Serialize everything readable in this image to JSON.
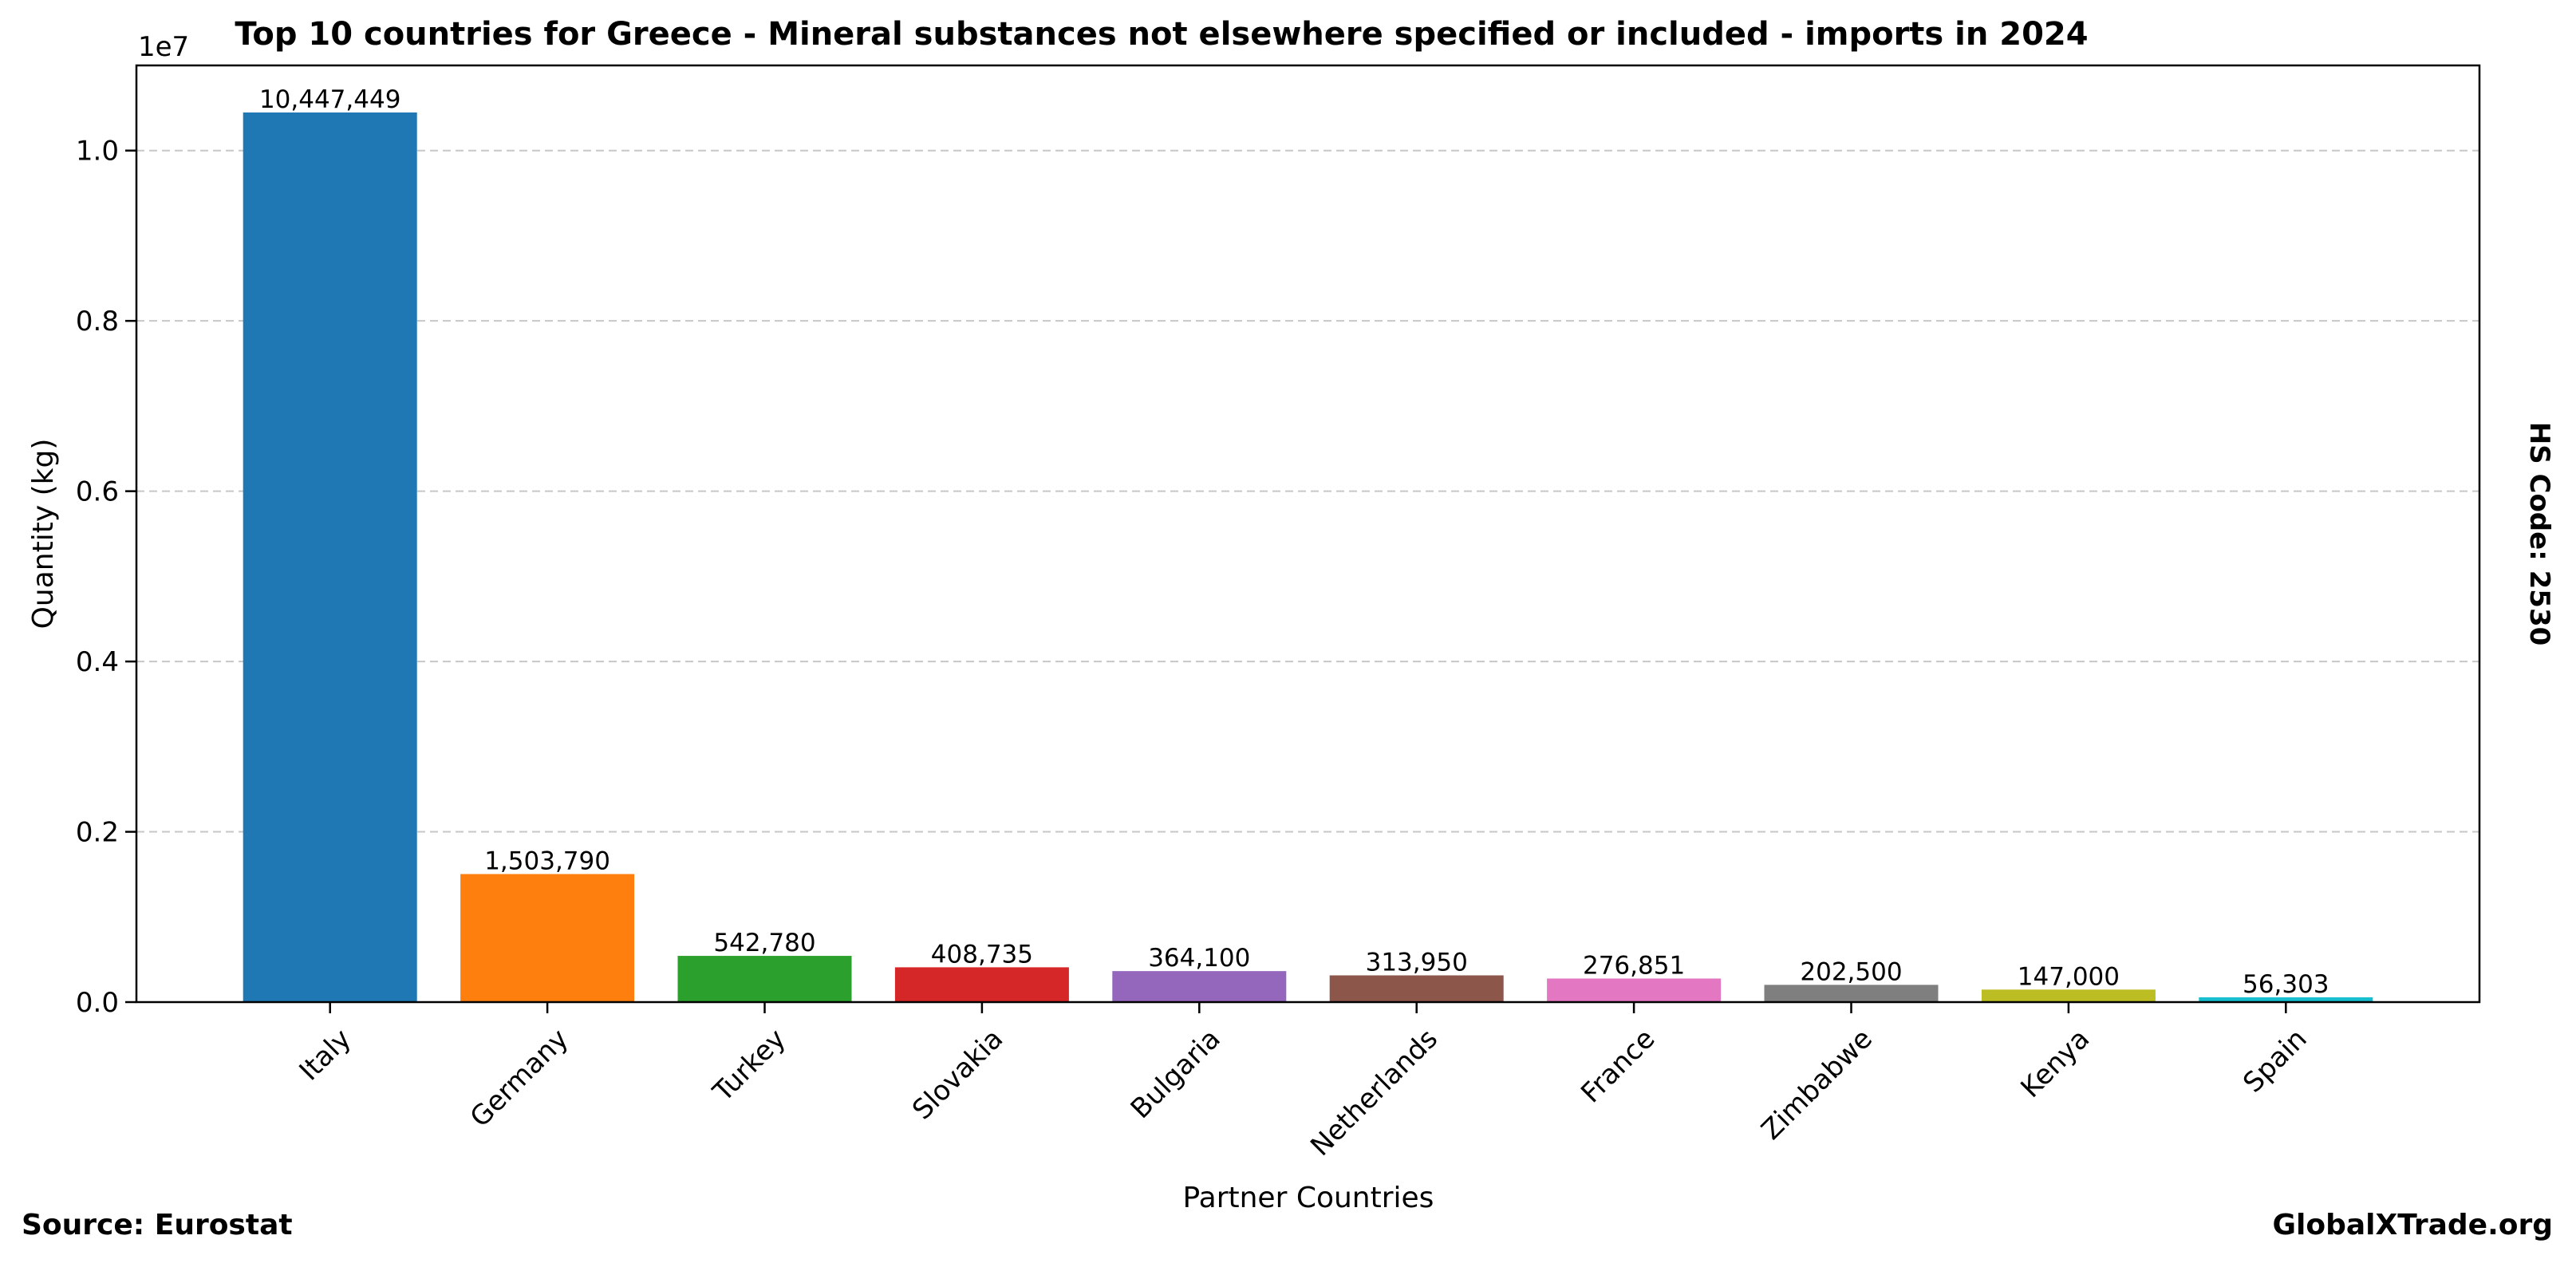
{
  "chart_data": {
    "type": "bar",
    "title": "Top 10 countries for Greece - Mineral substances not elsewhere specified or included - imports in 2024",
    "xlabel": "Partner Countries",
    "ylabel": "Quantity (kg)",
    "y_offset_text": "1e7",
    "y_scale": 10000000,
    "ylim": [
      0,
      11000000
    ],
    "yticks": [
      0,
      2000000,
      4000000,
      6000000,
      8000000,
      10000000
    ],
    "ytick_labels": [
      "0.0",
      "0.2",
      "0.4",
      "0.6",
      "0.8",
      "1.0"
    ],
    "grid": true,
    "categories": [
      "Italy",
      "Germany",
      "Turkey",
      "Slovakia",
      "Bulgaria",
      "Netherlands",
      "France",
      "Zimbabwe",
      "Kenya",
      "Spain"
    ],
    "values": [
      10447449,
      1503790,
      542780,
      408735,
      364100,
      313950,
      276851,
      202500,
      147000,
      56303
    ],
    "value_labels": [
      "10,447,449",
      "1,503,790",
      "542,780",
      "408,735",
      "364,100",
      "313,950",
      "276,851",
      "202,500",
      "147,000",
      "56,303"
    ],
    "colors": [
      "#1f77b4",
      "#ff7f0e",
      "#2ca02c",
      "#d62728",
      "#9467bd",
      "#8c564b",
      "#e377c2",
      "#7f7f7f",
      "#bcbd22",
      "#17becf"
    ]
  },
  "side_label": "HS Code: 2530",
  "footer": {
    "source": "Source: Eurostat",
    "brand": "GlobalXTrade.org"
  }
}
